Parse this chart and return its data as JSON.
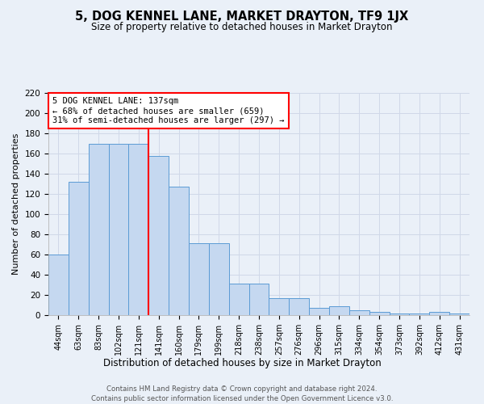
{
  "title": "5, DOG KENNEL LANE, MARKET DRAYTON, TF9 1JX",
  "subtitle": "Size of property relative to detached houses in Market Drayton",
  "xlabel": "Distribution of detached houses by size in Market Drayton",
  "ylabel": "Number of detached properties",
  "bar_labels": [
    "44sqm",
    "63sqm",
    "83sqm",
    "102sqm",
    "121sqm",
    "141sqm",
    "160sqm",
    "179sqm",
    "199sqm",
    "218sqm",
    "238sqm",
    "257sqm",
    "276sqm",
    "296sqm",
    "315sqm",
    "334sqm",
    "354sqm",
    "373sqm",
    "392sqm",
    "412sqm",
    "431sqm"
  ],
  "bar_values": [
    60,
    132,
    170,
    170,
    170,
    158,
    127,
    71,
    71,
    31,
    31,
    17,
    17,
    7,
    9,
    5,
    3,
    2,
    2,
    3,
    2
  ],
  "bar_color": "#c5d8f0",
  "bar_edge_color": "#5b9bd5",
  "property_label": "5 DOG KENNEL LANE: 137sqm",
  "annotation_line1": "← 68% of detached houses are smaller (659)",
  "annotation_line2": "31% of semi-detached houses are larger (297) →",
  "vline_color": "red",
  "vline_x_index": 5,
  "annotation_box_color": "#ffffff",
  "annotation_box_edge": "red",
  "grid_color": "#d0d8e8",
  "background_color": "#eaf0f8",
  "footer_line1": "Contains HM Land Registry data © Crown copyright and database right 2024.",
  "footer_line2": "Contains public sector information licensed under the Open Government Licence v3.0.",
  "ylim": [
    0,
    220
  ],
  "yticks": [
    0,
    20,
    40,
    60,
    80,
    100,
    120,
    140,
    160,
    180,
    200,
    220
  ]
}
